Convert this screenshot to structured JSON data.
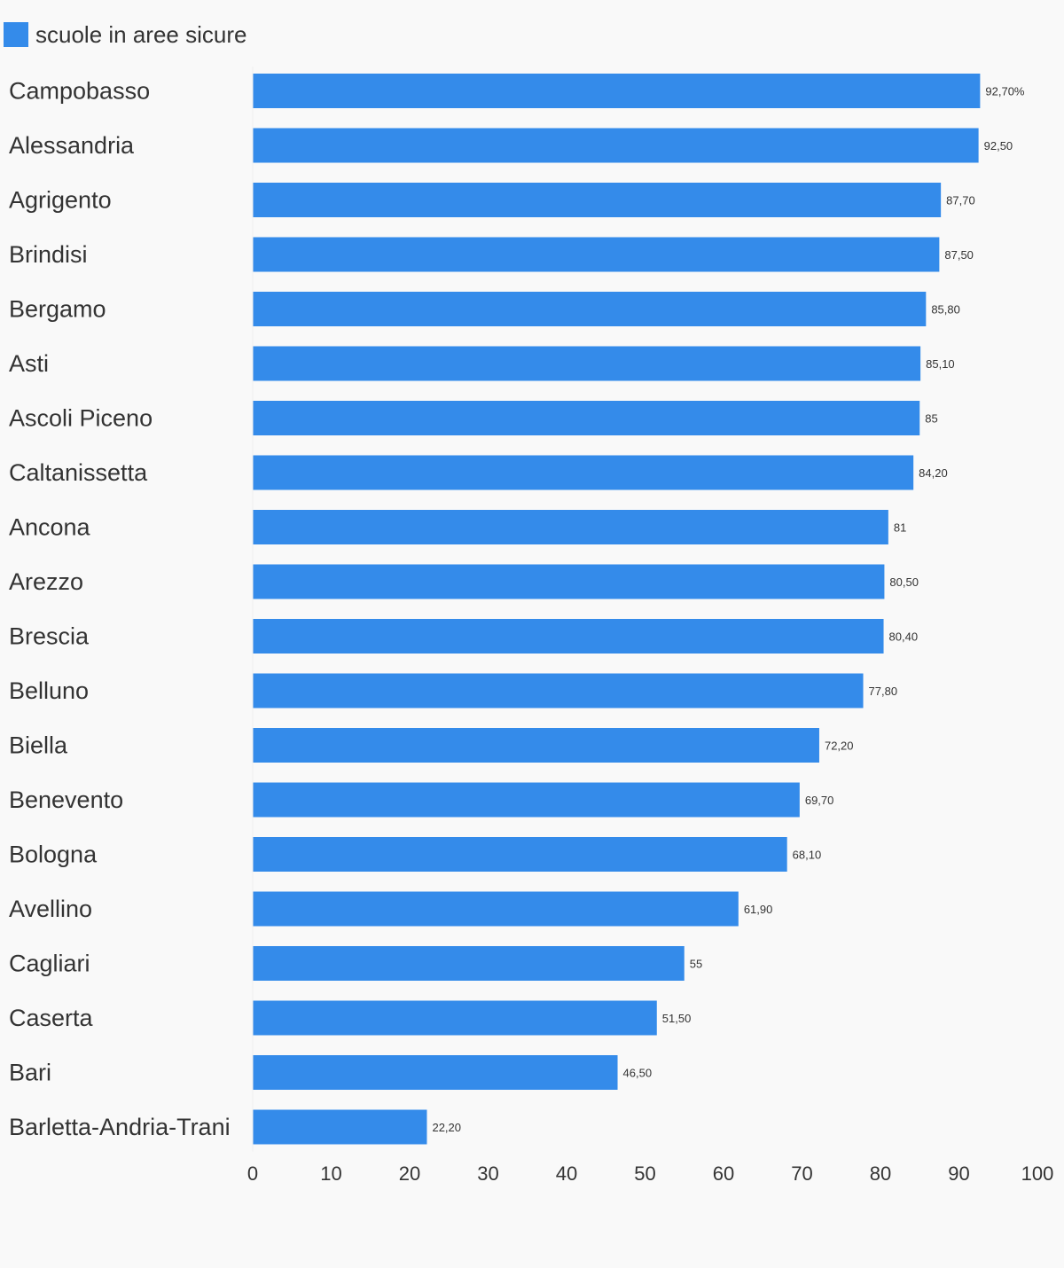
{
  "legend": {
    "label": "scuole in aree sicure",
    "color": "#348bea"
  },
  "chart_data": {
    "type": "bar",
    "orientation": "horizontal",
    "categories": [
      "Campobasso",
      "Alessandria",
      "Agrigento",
      "Brindisi",
      "Bergamo",
      "Asti",
      "Ascoli Piceno",
      "Caltanissetta",
      "Ancona",
      "Arezzo",
      "Brescia",
      "Belluno",
      "Biella",
      "Benevento",
      "Bologna",
      "Avellino",
      "Cagliari",
      "Caserta",
      "Bari",
      "Barletta-Andria-Trani"
    ],
    "series": [
      {
        "name": "scuole in aree sicure",
        "color": "#348bea",
        "values": [
          92.7,
          92.5,
          87.7,
          87.5,
          85.8,
          85.1,
          85,
          84.2,
          81,
          80.5,
          80.4,
          77.8,
          72.2,
          69.7,
          68.1,
          61.9,
          55,
          51.5,
          46.5,
          22.2
        ],
        "labels": [
          "92,70%",
          "92,50",
          "87,70",
          "87,50",
          "85,80",
          "85,10",
          "85",
          "84,20",
          "81",
          "80,50",
          "80,40",
          "77,80",
          "72,20",
          "69,70",
          "68,10",
          "61,90",
          "55",
          "51,50",
          "46,50",
          "22,20"
        ]
      }
    ],
    "xlim": [
      0,
      100
    ],
    "xticks": [
      "0",
      "10",
      "20",
      "30",
      "40",
      "50",
      "60",
      "70",
      "80",
      "90",
      "100"
    ],
    "grid": false,
    "legend_position": "top-left",
    "colors": {
      "background": "#f9f9f9",
      "text": "#333333"
    }
  }
}
